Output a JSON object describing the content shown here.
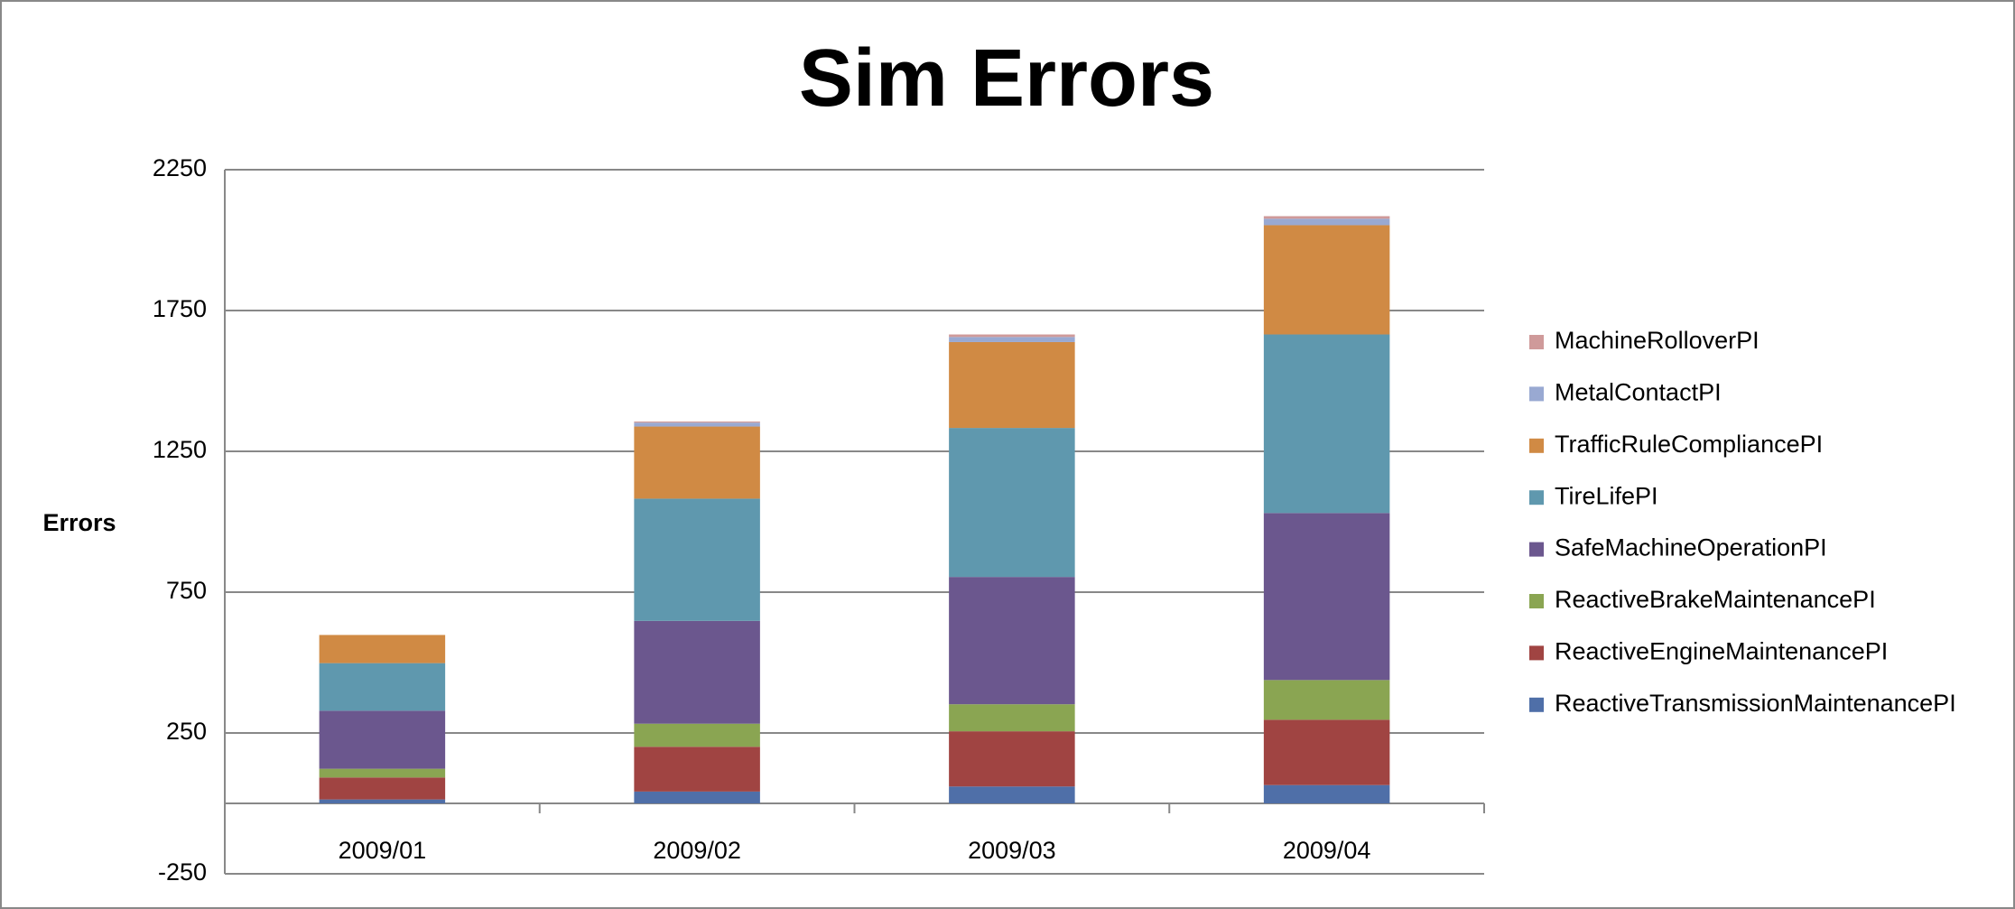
{
  "chart_data": {
    "type": "stacked_bar",
    "title": "Sim Errors",
    "y_label": "Errors",
    "categories": [
      "2009/01",
      "2009/02",
      "2009/03",
      "2009/04"
    ],
    "series": [
      {
        "name": "ReactiveTransmissionMaintenancePI",
        "color": "#4f6fa8",
        "values": [
          14,
          42,
          60,
          65
        ]
      },
      {
        "name": "ReactiveEngineMaintenancePI",
        "color": "#a04442",
        "values": [
          78,
          159,
          196,
          232
        ]
      },
      {
        "name": "ReactiveBrakeMaintenancePI",
        "color": "#8aa552",
        "values": [
          31,
          82,
          96,
          141
        ]
      },
      {
        "name": "SafeMachineOperationPI",
        "color": "#6b578e",
        "values": [
          206,
          365,
          452,
          593
        ]
      },
      {
        "name": "TireLifePI",
        "color": "#5f98ae",
        "values": [
          169,
          434,
          529,
          634
        ]
      },
      {
        "name": "TrafficRuleCompliancePI",
        "color": "#d08a44",
        "values": [
          100,
          256,
          305,
          388
        ]
      },
      {
        "name": "MetalContactPI",
        "color": "#99a9d2",
        "values": [
          0,
          14,
          18,
          23
        ]
      },
      {
        "name": "MachineRolloverPI",
        "color": "#cf9a9a",
        "values": [
          0,
          4,
          9,
          9
        ]
      }
    ],
    "ylim": [
      -250,
      2250
    ],
    "yticks": [
      -250,
      250,
      750,
      1250,
      1750,
      2250
    ],
    "grid": true,
    "legend": "right"
  }
}
